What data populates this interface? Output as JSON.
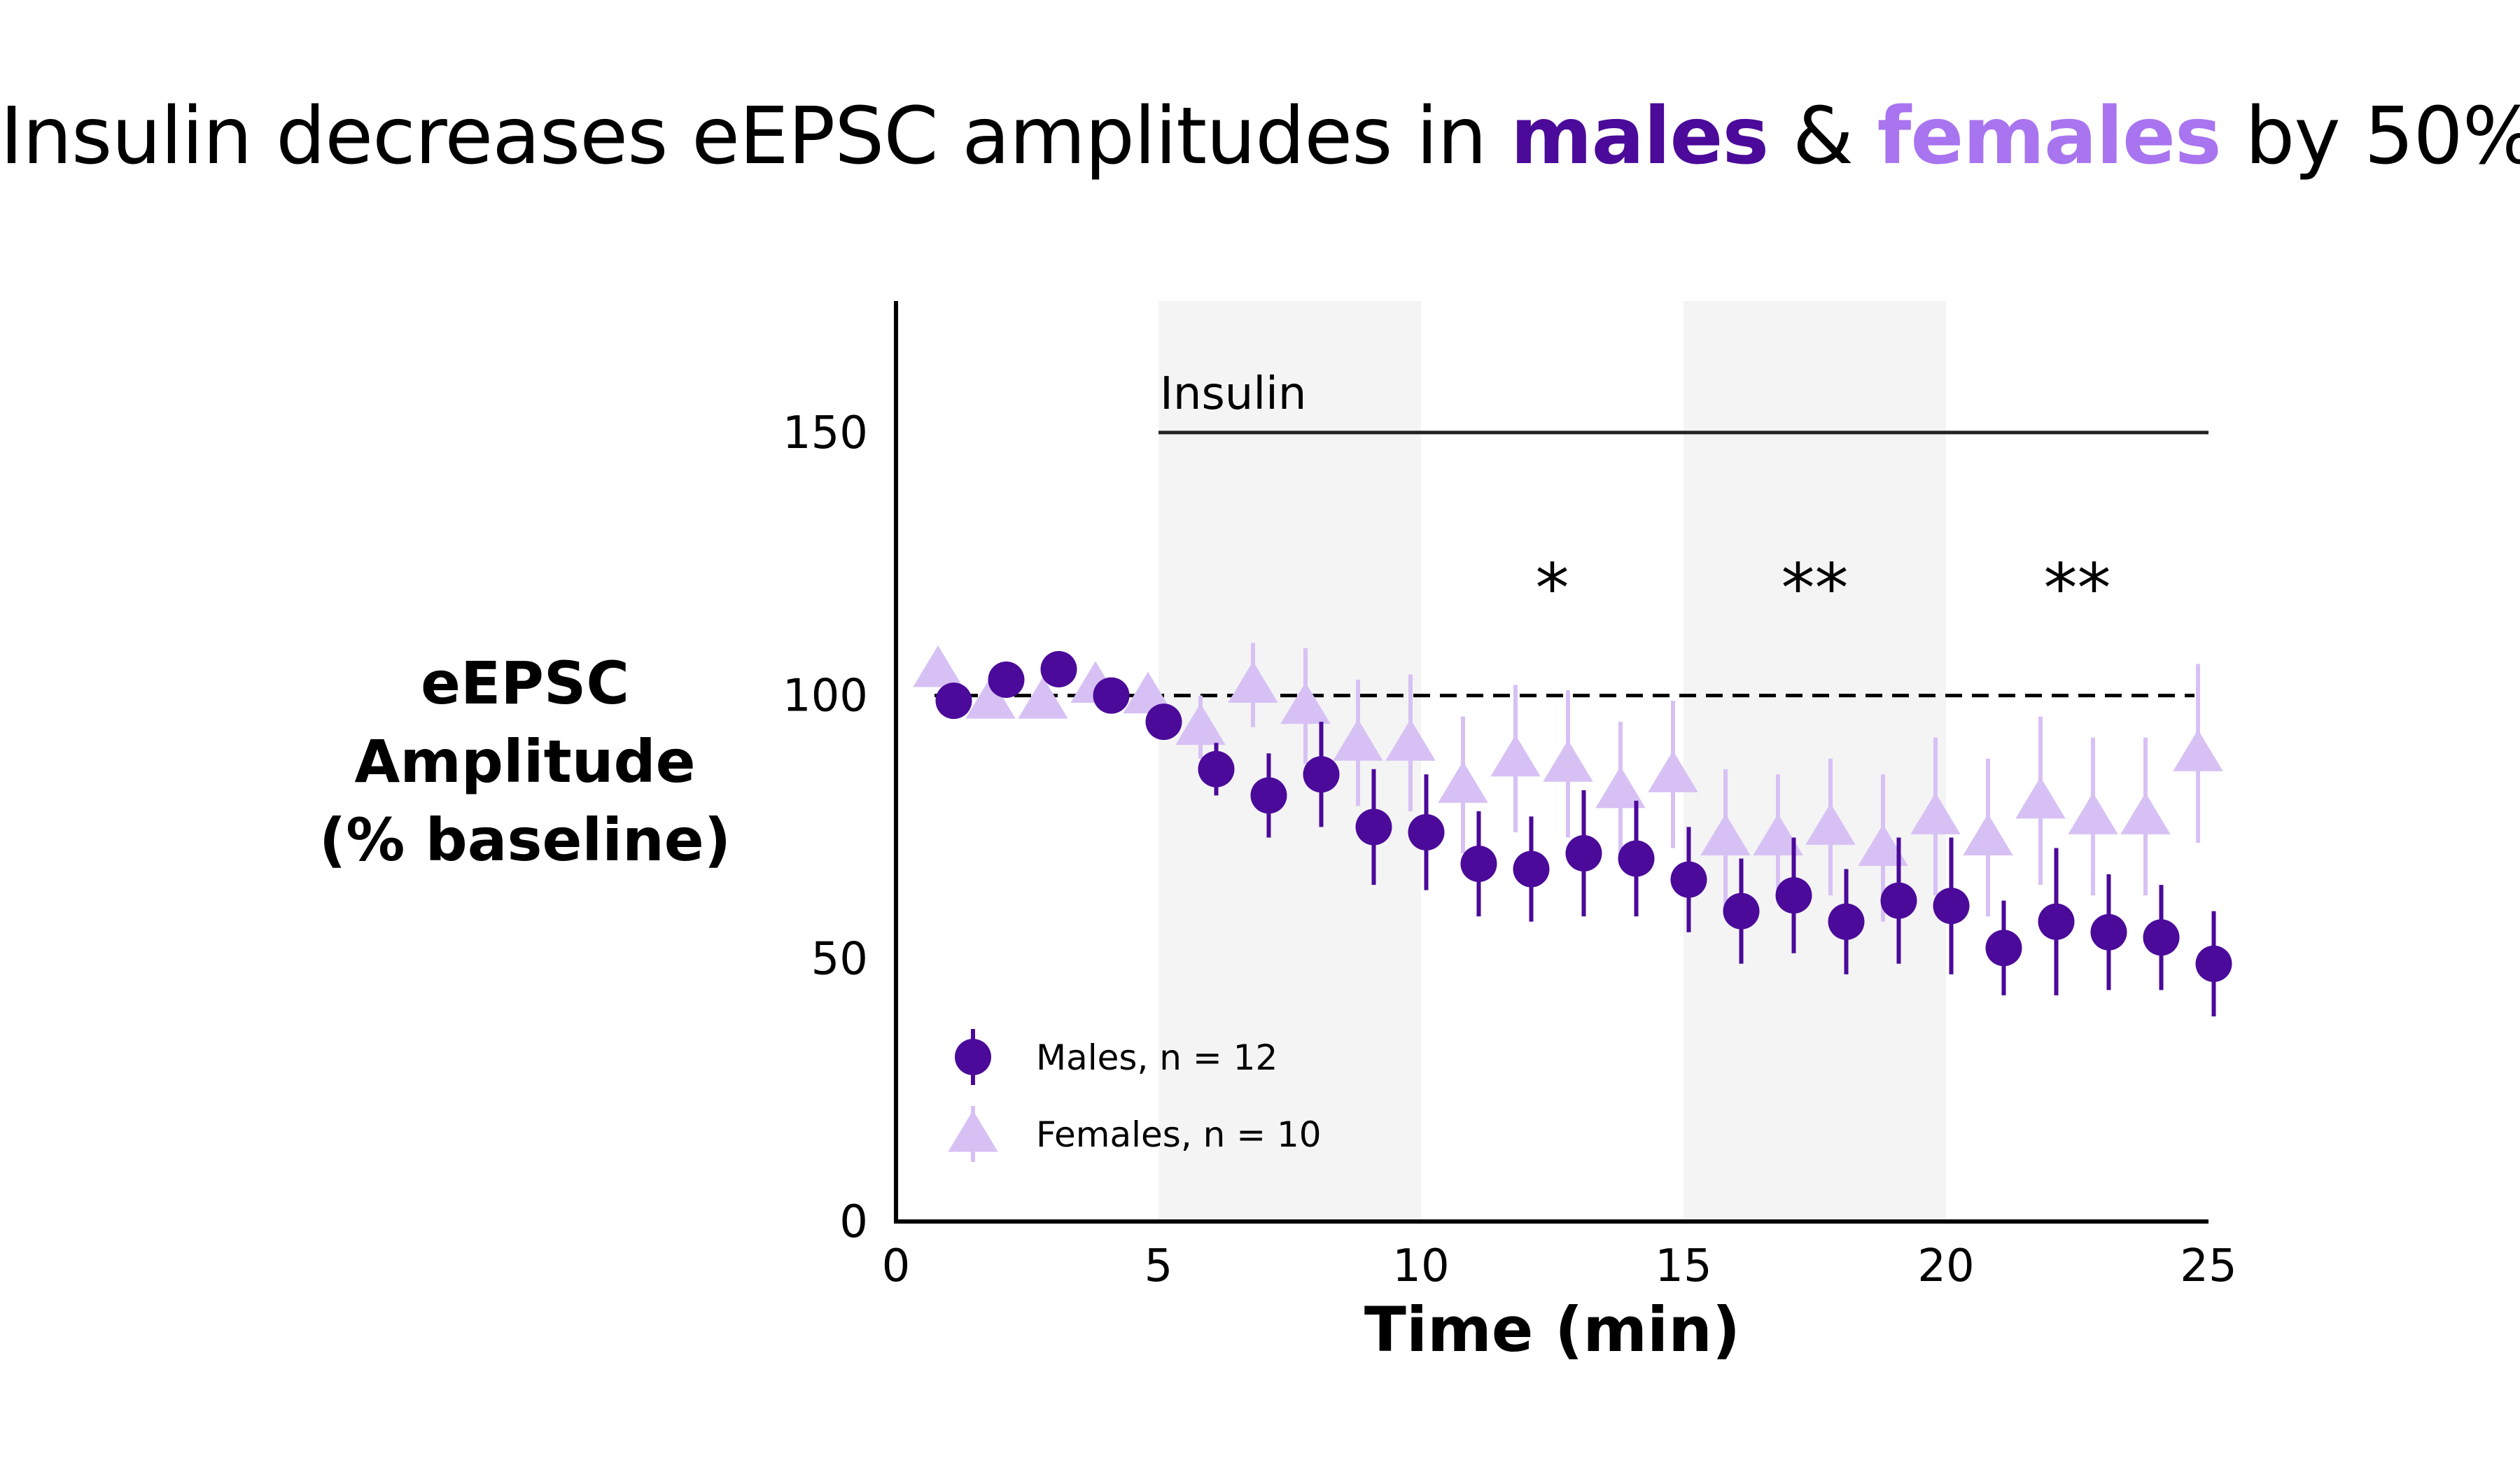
{
  "title": {
    "prefix": "Insulin decreases eEPSC amplitudes in ",
    "males_word": "males",
    "amp": " & ",
    "females_word": "females",
    "suffix": " by 50%",
    "males_color": "#4b0a9a",
    "females_color": "#a874ef"
  },
  "chart_data": {
    "type": "scatter",
    "title": "Insulin decreases eEPSC amplitudes in males & females by 50%",
    "xlabel": "Time (min)",
    "ylabel_lines": [
      "eEPSC",
      "Amplitude",
      "(% baseline)"
    ],
    "xlim": [
      0,
      25
    ],
    "ylim": [
      0,
      175
    ],
    "xticks": [
      0,
      5,
      10,
      15,
      20,
      25
    ],
    "yticks": [
      0,
      50,
      100,
      150
    ],
    "grid": false,
    "reference_line_y": 100,
    "shaded_bands": [
      [
        5,
        10
      ],
      [
        15,
        20
      ]
    ],
    "band_color": "#f4f4f4",
    "treatment_bar": {
      "label": "Insulin",
      "x_start": 5,
      "x_end": 25,
      "y": 150
    },
    "significance": [
      {
        "x": 12.5,
        "text": "*"
      },
      {
        "x": 17.5,
        "text": "**"
      },
      {
        "x": 22.5,
        "text": "**"
      }
    ],
    "legend_position": "bottom-left",
    "series": [
      {
        "name": "Females, n = 10",
        "marker": "triangle",
        "color": "#d7c1f4",
        "x": [
          0.8,
          1.8,
          2.8,
          3.8,
          4.8,
          5.8,
          6.8,
          7.8,
          8.8,
          9.8,
          10.8,
          11.8,
          12.8,
          13.8,
          14.8,
          15.8,
          16.8,
          17.8,
          18.8,
          19.8,
          20.8,
          21.8,
          22.8,
          23.8,
          24.8
        ],
        "y": [
          105,
          99,
          99,
          102,
          100,
          94,
          102,
          98,
          91,
          91,
          83,
          88,
          87,
          82,
          85,
          73,
          73,
          75,
          71,
          77,
          73,
          80,
          77,
          77,
          89
        ],
        "err": [
          3,
          2,
          3,
          3,
          3,
          6,
          8,
          11,
          12,
          13,
          13,
          14,
          14,
          13,
          14,
          13,
          12,
          13,
          14,
          15,
          15,
          16,
          15,
          15,
          17
        ]
      },
      {
        "name": "Males, n = 12",
        "marker": "circle",
        "color": "#4b0a9a",
        "x": [
          1.1,
          2.1,
          3.1,
          4.1,
          5.1,
          6.1,
          7.1,
          8.1,
          9.1,
          10.1,
          11.1,
          12.1,
          13.1,
          14.1,
          15.1,
          16.1,
          17.1,
          18.1,
          19.1,
          20.1,
          21.1,
          22.1,
          23.1,
          24.1,
          25.1
        ],
        "y": [
          99,
          103,
          105,
          100,
          95,
          86,
          81,
          85,
          75,
          74,
          68,
          67,
          70,
          69,
          65,
          59,
          62,
          57,
          61,
          60,
          52,
          57,
          55,
          54,
          49
        ],
        "err": [
          2,
          2,
          2,
          3,
          3,
          5,
          8,
          10,
          11,
          11,
          10,
          10,
          12,
          11,
          10,
          10,
          11,
          10,
          12,
          13,
          9,
          14,
          11,
          10,
          10
        ]
      }
    ]
  }
}
